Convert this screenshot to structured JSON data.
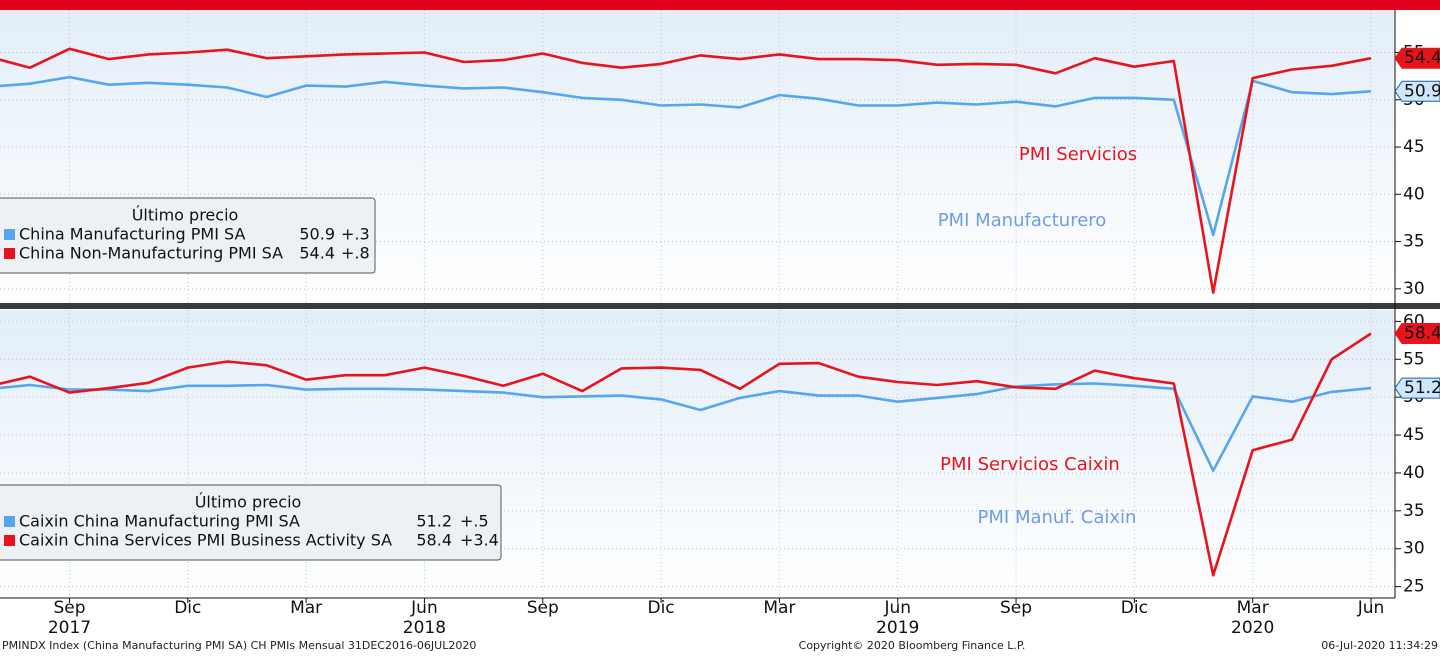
{
  "chart_data": [
    {
      "type": "line",
      "ylim": [
        28.5,
        59.5
      ],
      "yticks": [
        30,
        35,
        40,
        45,
        50,
        55
      ],
      "grid": true,
      "legend": {
        "title": "Último precio",
        "corner": "lower-left"
      },
      "series": [
        {
          "name": "China Manufacturing PMI SA",
          "color": "#55a6ee",
          "last_label": "50.9",
          "change": "+.3",
          "values": [
            51.4,
            51.7,
            52.4,
            51.6,
            51.8,
            51.6,
            51.3,
            50.3,
            51.5,
            51.4,
            51.9,
            51.5,
            51.2,
            51.3,
            50.8,
            50.2,
            50.0,
            49.4,
            49.5,
            49.2,
            50.5,
            50.1,
            49.4,
            49.4,
            49.7,
            49.5,
            49.8,
            49.3,
            50.2,
            50.2,
            50.0,
            35.7,
            52.0,
            50.8,
            50.6,
            50.9
          ]
        },
        {
          "name": "China Non-Manufacturing PMI SA",
          "color": "#e8141c",
          "last_label": "54.4",
          "change": "+.8",
          "values": [
            54.5,
            53.4,
            55.4,
            54.3,
            54.8,
            55.0,
            55.3,
            54.4,
            54.6,
            54.8,
            54.9,
            55.0,
            54.0,
            54.2,
            54.9,
            53.9,
            53.4,
            53.8,
            54.7,
            54.3,
            54.8,
            54.3,
            54.3,
            54.2,
            53.7,
            53.8,
            53.7,
            52.8,
            54.4,
            53.5,
            54.1,
            29.6,
            52.3,
            53.2,
            53.6,
            54.4
          ]
        }
      ],
      "annotations": [
        {
          "text": "PMI Servicios",
          "color": "#e8141c"
        },
        {
          "text": "PMI Manufacturero",
          "color": "#6d9de3"
        }
      ]
    },
    {
      "type": "line",
      "ylim": [
        23.5,
        61.5
      ],
      "yticks": [
        25,
        30,
        35,
        40,
        45,
        50,
        55,
        60
      ],
      "grid": true,
      "legend": {
        "title": "Último precio",
        "corner": "lower-left"
      },
      "categories": [
        null,
        null,
        "Sep",
        null,
        null,
        "Dic",
        null,
        null,
        "Mar",
        null,
        null,
        "Jun",
        null,
        null,
        "Sep",
        null,
        null,
        "Dic",
        null,
        null,
        "Mar",
        null,
        null,
        "Jun",
        null,
        null,
        "Sep",
        null,
        null,
        "Dic",
        null,
        null,
        "Mar",
        null,
        null,
        "Jun"
      ],
      "category_years": [
        null,
        null,
        "2017",
        null,
        null,
        null,
        null,
        null,
        null,
        null,
        null,
        "2018",
        null,
        null,
        null,
        null,
        null,
        null,
        null,
        null,
        null,
        null,
        null,
        "2019",
        null,
        null,
        null,
        null,
        null,
        null,
        null,
        null,
        "2020",
        null,
        null,
        null
      ],
      "series": [
        {
          "name": "Caixin China Manufacturing PMI SA",
          "color": "#55a6ee",
          "last_label": "51.2",
          "change": "+.5",
          "values": [
            51.1,
            51.6,
            51.0,
            51.0,
            50.8,
            51.5,
            51.5,
            51.6,
            51.0,
            51.1,
            51.1,
            51.0,
            50.8,
            50.6,
            50.0,
            50.1,
            50.2,
            49.7,
            48.3,
            49.9,
            50.8,
            50.2,
            50.2,
            49.4,
            49.9,
            50.4,
            51.4,
            51.7,
            51.8,
            51.5,
            51.1,
            40.3,
            50.1,
            49.4,
            50.7,
            51.2
          ]
        },
        {
          "name": "Caixin China Services PMI Business Activity SA",
          "color": "#e8141c",
          "last_label": "58.4",
          "change": "+3.4",
          "values": [
            51.5,
            52.7,
            50.6,
            51.2,
            51.9,
            53.9,
            54.7,
            54.2,
            52.3,
            52.9,
            52.9,
            53.9,
            52.8,
            51.5,
            53.1,
            50.8,
            53.8,
            53.9,
            53.6,
            51.1,
            54.4,
            54.5,
            52.7,
            52.0,
            51.6,
            52.1,
            51.3,
            51.1,
            53.5,
            52.5,
            51.8,
            26.5,
            43.0,
            44.4,
            55.0,
            58.4
          ]
        }
      ],
      "annotations": [
        {
          "text": "PMI Servicios Caixin",
          "color": "#e8141c"
        },
        {
          "text": "PMI Manuf. Caixin",
          "color": "#6d9de3"
        }
      ]
    }
  ],
  "footer": {
    "left": "PMINDX Index (China Manufacturing PMI SA) CH PMIs  Mensual 31DEC2016-06JUL2020",
    "center": "Copyright© 2020 Bloomberg Finance L.P.",
    "right": "06-Jul-2020 11:34:29"
  }
}
